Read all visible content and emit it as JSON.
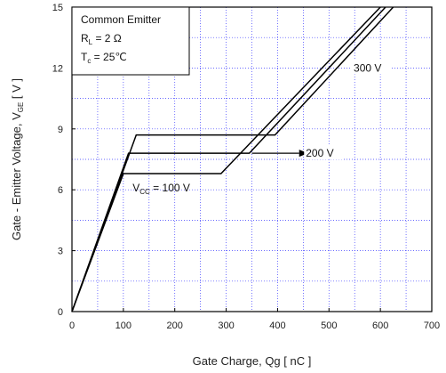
{
  "chart_data": {
    "type": "line",
    "title": "",
    "xlabel": "Gate Charge, Qg [ nC ]",
    "ylabel_main": "Gate - Emitter Voltage,  V",
    "ylabel_sub": "GE",
    "ylabel_unit": " [ V ]",
    "xlim": [
      0,
      700
    ],
    "ylim": [
      0,
      15
    ],
    "x_ticks": [
      0,
      100,
      200,
      300,
      400,
      500,
      600,
      700
    ],
    "y_ticks": [
      0,
      3,
      6,
      9,
      12,
      15
    ],
    "grid": true,
    "legend": {
      "position": "top-left",
      "lines": [
        {
          "main": "Common Emitter",
          "sub": "",
          "rest": ""
        },
        {
          "main": "R",
          "sub": "L",
          "rest": " = 2 Ω"
        },
        {
          "main": "T",
          "sub": "c",
          "rest": " = 25℃"
        }
      ]
    },
    "series": [
      {
        "label_main": "V",
        "label_sub": "CC",
        "label_rest": " = 100 V",
        "x": [
          0,
          100,
          290,
          600
        ],
        "y": [
          0,
          6.8,
          6.8,
          15
        ]
      },
      {
        "label_main": "200 V",
        "label_sub": "",
        "label_rest": "",
        "x": [
          0,
          110,
          345,
          610
        ],
        "y": [
          0,
          7.8,
          7.8,
          15
        ]
      },
      {
        "label_main": "300 V",
        "label_sub": "",
        "label_rest": "",
        "x": [
          0,
          125,
          395,
          625
        ],
        "y": [
          0,
          8.7,
          8.7,
          15
        ]
      }
    ]
  }
}
